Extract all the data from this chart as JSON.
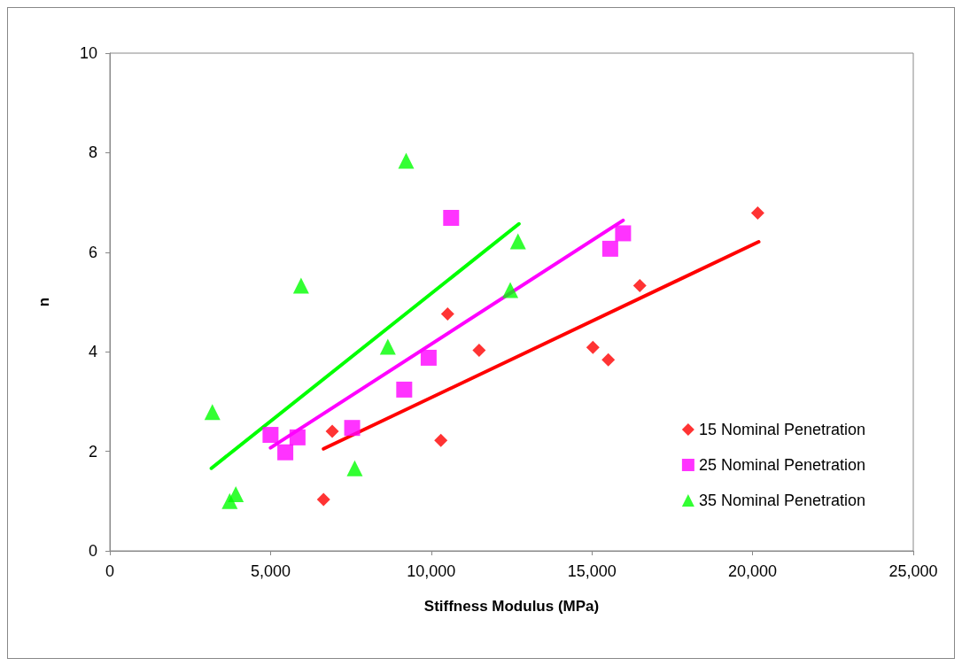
{
  "chart_data": {
    "type": "scatter",
    "xlabel": "Stiffness Modulus (MPa)",
    "ylabel": "n",
    "xlim": [
      0,
      25000
    ],
    "ylim": [
      0,
      10
    ],
    "xticks": [
      0,
      {
        "value": 5000,
        "label": "5,000"
      },
      {
        "value": 10000,
        "label": "10,000"
      },
      {
        "value": 15000,
        "label": "15,000"
      },
      {
        "value": 20000,
        "label": "20,000"
      },
      {
        "value": 25000,
        "label": "25,000"
      }
    ],
    "yticks": [
      0,
      2,
      4,
      6,
      8,
      10
    ],
    "grid": false,
    "legend": "right",
    "series": [
      {
        "name": "15 Nominal Penetration",
        "marker": "diamond",
        "color": "#ff0000",
        "x": [
          6650,
          6920,
          10300,
          10510,
          11490,
          15030,
          15510,
          16490,
          20160
        ],
        "values": [
          1.03,
          2.4,
          2.22,
          4.76,
          4.03,
          4.09,
          3.84,
          5.33,
          6.79
        ]
      },
      {
        "name": "25 Nominal Penetration",
        "marker": "square",
        "color": "#ff00ff",
        "x": [
          5000,
          5460,
          5840,
          7540,
          9160,
          9920,
          10620,
          15570,
          15970
        ],
        "values": [
          2.33,
          1.98,
          2.28,
          2.47,
          3.24,
          3.88,
          6.69,
          6.07,
          6.38
        ]
      },
      {
        "name": "35 Nominal Penetration",
        "marker": "triangle",
        "color": "#00ff00",
        "x": [
          3190,
          3730,
          3920,
          5950,
          7620,
          8650,
          9220,
          12460,
          12700
        ],
        "values": [
          2.79,
          1.0,
          1.14,
          5.33,
          1.66,
          4.1,
          7.84,
          5.24,
          6.22
        ]
      },
      {
        "type": "line",
        "marker": "none",
        "color": "#ff0000",
        "x": [
          6650,
          20190
        ],
        "values": [
          2.05,
          6.21
        ]
      },
      {
        "type": "line",
        "marker": "none",
        "color": "#ff00ff",
        "x": [
          5000,
          15970
        ],
        "values": [
          2.07,
          6.64
        ]
      },
      {
        "type": "line",
        "marker": "none",
        "color": "#00ff00",
        "x": [
          3160,
          12730
        ],
        "values": [
          1.66,
          6.57
        ]
      }
    ]
  }
}
